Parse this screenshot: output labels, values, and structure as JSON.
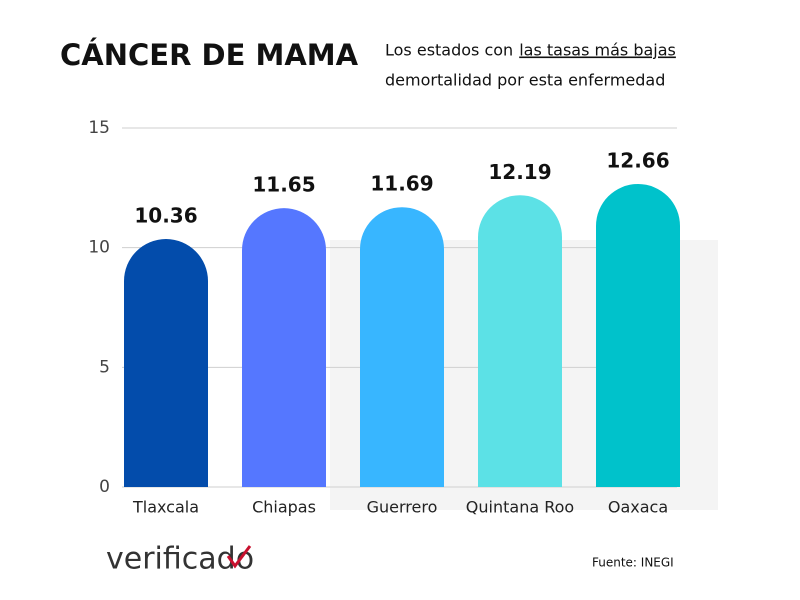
{
  "chart_data": {
    "type": "bar",
    "title": "CÁNCER DE MAMA",
    "subtitle": [
      "Los estados con",
      "las tasas más bajas",
      "demortalidad por esta enfermedad"
    ],
    "categories": [
      "Tlaxcala",
      "Chiapas",
      "Guerrero",
      "Quintana Roo",
      "Oaxaca"
    ],
    "values": [
      10.36,
      11.65,
      11.69,
      12.19,
      12.66
    ],
    "colors": [
      "#034cab",
      "#5577ff",
      "#38b6ff",
      "#5ce1e6",
      "#00c2cb"
    ],
    "ylim": [
      0,
      15
    ],
    "yticks": [
      0,
      5,
      10,
      15
    ],
    "grid": true,
    "source": "Fuente: INEGI",
    "logo": "verificado"
  }
}
